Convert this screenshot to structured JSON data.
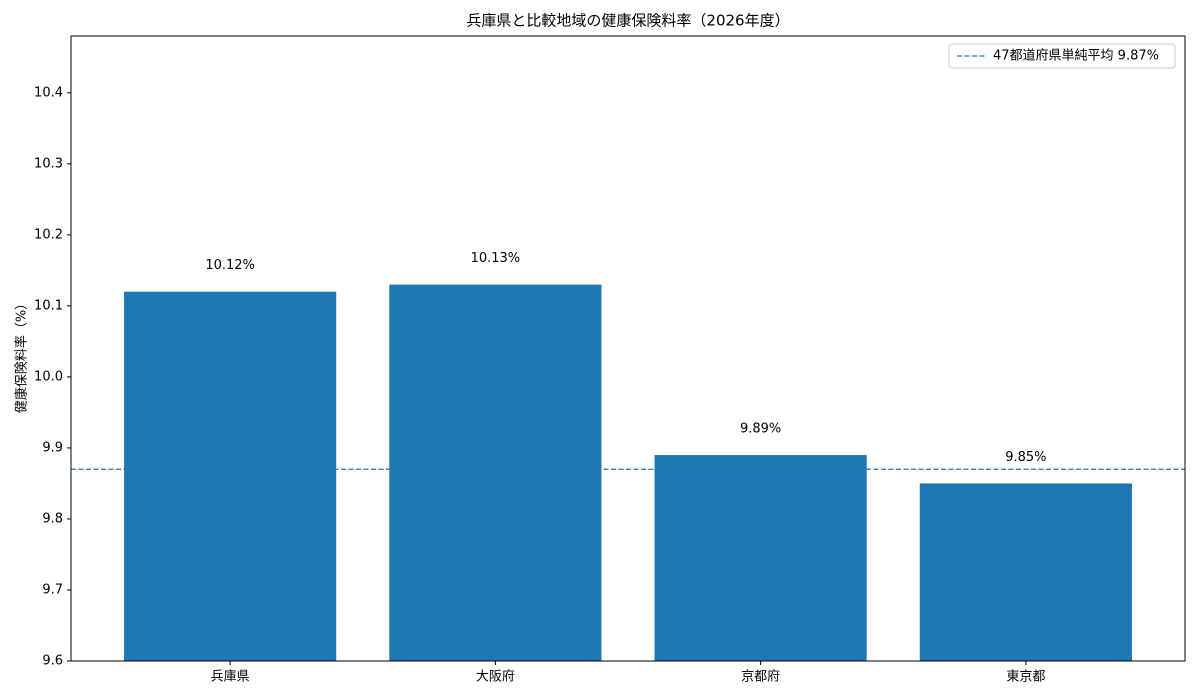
{
  "chart_data": {
    "type": "bar",
    "title": "兵庫県と比較地域の健康保険料率（2026年度）",
    "y_label": "健康保険料率（%）",
    "categories": [
      "兵庫県",
      "大阪府",
      "京都府",
      "東京都"
    ],
    "values": [
      10.12,
      10.13,
      9.89,
      9.85
    ],
    "value_labels": [
      "10.12%",
      "10.13%",
      "9.89%",
      "9.85%"
    ],
    "color": "#1f77b4",
    "ylim": [
      9.6,
      10.48
    ],
    "yticks": [
      9.6,
      9.7,
      9.8,
      9.9,
      {
        "value": 10,
        "label": "10.0"
      },
      10.1,
      10.2,
      10.3,
      10.4
    ],
    "reference_line": {
      "value": 9.87,
      "label": "47都道府県単純平均 9.87%",
      "color": "#1f77b4",
      "style": "dashed"
    },
    "legend": "upper right"
  }
}
